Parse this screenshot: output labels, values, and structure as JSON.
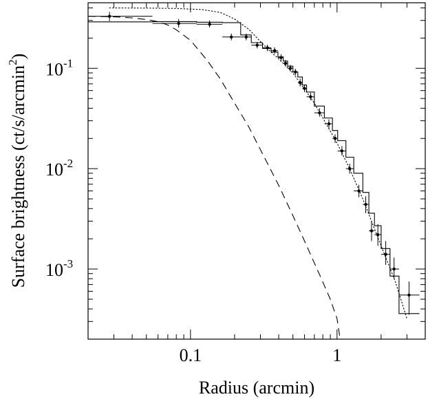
{
  "chart_data": {
    "type": "line",
    "title": "",
    "xlabel": "Radius (arcmin)",
    "ylabel": "Surface brightness (ct/s/arcmin",
    "ylabel_superscript": "2",
    "ylabel_close": ")",
    "x_scale": "log",
    "y_scale": "log",
    "xlim": [
      0.02,
      4.0
    ],
    "ylim": [
      0.0002,
      0.45
    ],
    "grid": false,
    "legend": "none",
    "x_tick_labels": [
      {
        "value": 0.1,
        "text": "0.1"
      },
      {
        "value": 1,
        "text": "1"
      }
    ],
    "y_tick_labels": [
      {
        "value": 0.1,
        "base": "10",
        "exp": "-1"
      },
      {
        "value": 0.01,
        "base": "10",
        "exp": "-2"
      },
      {
        "value": 0.001,
        "base": "10",
        "exp": "-3"
      }
    ],
    "series": [
      {
        "style": "data-points",
        "points": [
          {
            "x": 0.028,
            "y": 0.33,
            "xlo": 0.02,
            "xhi": 0.055,
            "ylo": 0.295,
            "yhi": 0.365
          },
          {
            "x": 0.083,
            "y": 0.28,
            "xlo": 0.055,
            "xhi": 0.11,
            "ylo": 0.255,
            "yhi": 0.31
          },
          {
            "x": 0.135,
            "y": 0.275,
            "xlo": 0.11,
            "xhi": 0.165,
            "ylo": 0.255,
            "yhi": 0.3
          },
          {
            "x": 0.19,
            "y": 0.205,
            "xlo": 0.165,
            "xhi": 0.22,
            "ylo": 0.19,
            "yhi": 0.222
          },
          {
            "x": 0.24,
            "y": 0.205,
            "xlo": 0.22,
            "xhi": 0.26,
            "ylo": 0.19,
            "yhi": 0.222
          },
          {
            "x": 0.285,
            "y": 0.17,
            "xlo": 0.26,
            "xhi": 0.31,
            "ylo": 0.158,
            "yhi": 0.183
          },
          {
            "x": 0.335,
            "y": 0.16,
            "xlo": 0.31,
            "xhi": 0.355,
            "ylo": 0.148,
            "yhi": 0.172
          },
          {
            "x": 0.375,
            "y": 0.15,
            "xlo": 0.355,
            "xhi": 0.395,
            "ylo": 0.14,
            "yhi": 0.162
          },
          {
            "x": 0.415,
            "y": 0.128,
            "xlo": 0.395,
            "xhi": 0.43,
            "ylo": 0.119,
            "yhi": 0.138
          },
          {
            "x": 0.445,
            "y": 0.112,
            "xlo": 0.43,
            "xhi": 0.46,
            "ylo": 0.104,
            "yhi": 0.121
          },
          {
            "x": 0.48,
            "y": 0.1,
            "xlo": 0.46,
            "xhi": 0.5,
            "ylo": 0.093,
            "yhi": 0.108
          },
          {
            "x": 0.52,
            "y": 0.092,
            "xlo": 0.5,
            "xhi": 0.54,
            "ylo": 0.085,
            "yhi": 0.099
          },
          {
            "x": 0.56,
            "y": 0.072,
            "xlo": 0.54,
            "xhi": 0.58,
            "ylo": 0.066,
            "yhi": 0.079
          },
          {
            "x": 0.6,
            "y": 0.063,
            "xlo": 0.58,
            "xhi": 0.62,
            "ylo": 0.058,
            "yhi": 0.069
          },
          {
            "x": 0.66,
            "y": 0.052,
            "xlo": 0.62,
            "xhi": 0.7,
            "ylo": 0.048,
            "yhi": 0.057
          },
          {
            "x": 0.76,
            "y": 0.036,
            "xlo": 0.7,
            "xhi": 0.82,
            "ylo": 0.033,
            "yhi": 0.04
          },
          {
            "x": 0.88,
            "y": 0.028,
            "xlo": 0.82,
            "xhi": 0.93,
            "ylo": 0.025,
            "yhi": 0.031
          },
          {
            "x": 0.97,
            "y": 0.02,
            "xlo": 0.93,
            "xhi": 1.01,
            "ylo": 0.018,
            "yhi": 0.022
          },
          {
            "x": 1.08,
            "y": 0.015,
            "xlo": 1.01,
            "xhi": 1.15,
            "ylo": 0.0135,
            "yhi": 0.0168
          },
          {
            "x": 1.22,
            "y": 0.01,
            "xlo": 1.15,
            "xhi": 1.3,
            "ylo": 0.0089,
            "yhi": 0.0112
          },
          {
            "x": 1.41,
            "y": 0.006,
            "xlo": 1.3,
            "xhi": 1.5,
            "ylo": 0.0052,
            "yhi": 0.0069
          },
          {
            "x": 1.57,
            "y": 0.0044,
            "xlo": 1.5,
            "xhi": 1.65,
            "ylo": 0.0036,
            "yhi": 0.0053
          },
          {
            "x": 1.72,
            "y": 0.0024,
            "xlo": 1.65,
            "xhi": 1.8,
            "ylo": 0.0019,
            "yhi": 0.003
          },
          {
            "x": 1.9,
            "y": 0.0022,
            "xlo": 1.8,
            "xhi": 2.0,
            "ylo": 0.0017,
            "yhi": 0.0028
          },
          {
            "x": 2.15,
            "y": 0.0014,
            "xlo": 2.0,
            "xhi": 2.3,
            "ylo": 0.0011,
            "yhi": 0.0019
          },
          {
            "x": 2.45,
            "y": 0.001,
            "xlo": 2.3,
            "xhi": 2.65,
            "ylo": 0.0008,
            "yhi": 0.0013
          },
          {
            "x": 3.1,
            "y": 0.00055,
            "xlo": 2.65,
            "xhi": 3.65,
            "ylo": 0.00035,
            "yhi": 0.00075
          }
        ]
      },
      {
        "style": "solid-step",
        "steps": [
          {
            "x0": 0.02,
            "x1": 0.055,
            "y": 0.29
          },
          {
            "x0": 0.055,
            "x1": 0.11,
            "y": 0.292
          },
          {
            "x0": 0.11,
            "x1": 0.165,
            "y": 0.288
          },
          {
            "x0": 0.165,
            "x1": 0.22,
            "y": 0.285
          },
          {
            "x0": 0.22,
            "x1": 0.26,
            "y": 0.215
          },
          {
            "x0": 0.26,
            "x1": 0.31,
            "y": 0.18
          },
          {
            "x0": 0.31,
            "x1": 0.355,
            "y": 0.158
          },
          {
            "x0": 0.355,
            "x1": 0.395,
            "y": 0.145
          },
          {
            "x0": 0.395,
            "x1": 0.43,
            "y": 0.13
          },
          {
            "x0": 0.43,
            "x1": 0.46,
            "y": 0.118
          },
          {
            "x0": 0.46,
            "x1": 0.5,
            "y": 0.105
          },
          {
            "x0": 0.5,
            "x1": 0.54,
            "y": 0.092
          },
          {
            "x0": 0.54,
            "x1": 0.58,
            "y": 0.082
          },
          {
            "x0": 0.58,
            "x1": 0.62,
            "y": 0.068
          },
          {
            "x0": 0.62,
            "x1": 0.7,
            "y": 0.058
          },
          {
            "x0": 0.7,
            "x1": 0.82,
            "y": 0.042
          },
          {
            "x0": 0.82,
            "x1": 0.93,
            "y": 0.032
          },
          {
            "x0": 0.93,
            "x1": 1.01,
            "y": 0.024
          },
          {
            "x0": 1.01,
            "x1": 1.15,
            "y": 0.019
          },
          {
            "x0": 1.15,
            "x1": 1.3,
            "y": 0.013
          },
          {
            "x0": 1.3,
            "x1": 1.5,
            "y": 0.009
          },
          {
            "x0": 1.5,
            "x1": 1.65,
            "y": 0.0058
          },
          {
            "x0": 1.65,
            "x1": 1.8,
            "y": 0.0036
          },
          {
            "x0": 1.8,
            "x1": 2.0,
            "y": 0.0027
          },
          {
            "x0": 2.0,
            "x1": 2.3,
            "y": 0.0016
          },
          {
            "x0": 2.3,
            "x1": 2.65,
            "y": 0.00085
          },
          {
            "x0": 2.65,
            "x1": 3.65,
            "y": 0.00036
          }
        ]
      },
      {
        "style": "dashed",
        "x": [
          0.02,
          0.03,
          0.04,
          0.05,
          0.06,
          0.07,
          0.08,
          0.1,
          0.13,
          0.16,
          0.2,
          0.25,
          0.3,
          0.4,
          0.5,
          0.6,
          0.7,
          0.8,
          0.9,
          1.0,
          1.05
        ],
        "y": [
          0.33,
          0.326,
          0.318,
          0.306,
          0.292,
          0.27,
          0.242,
          0.19,
          0.12,
          0.078,
          0.045,
          0.026,
          0.0155,
          0.0068,
          0.0034,
          0.0019,
          0.00115,
          0.00074,
          0.0005,
          0.00032,
          0.0002
        ]
      },
      {
        "style": "dotted",
        "x": [
          0.028,
          0.05,
          0.08,
          0.12,
          0.16,
          0.2,
          0.25,
          0.3,
          0.35,
          0.4,
          0.45,
          0.5,
          0.6,
          0.7,
          0.8,
          1.0,
          1.2,
          1.5,
          2.0,
          2.5,
          3.0
        ],
        "y": [
          0.4,
          0.398,
          0.395,
          0.385,
          0.36,
          0.31,
          0.245,
          0.185,
          0.148,
          0.124,
          0.105,
          0.09,
          0.062,
          0.045,
          0.032,
          0.018,
          0.0105,
          0.005,
          0.0017,
          0.00075,
          0.00032
        ]
      }
    ]
  }
}
